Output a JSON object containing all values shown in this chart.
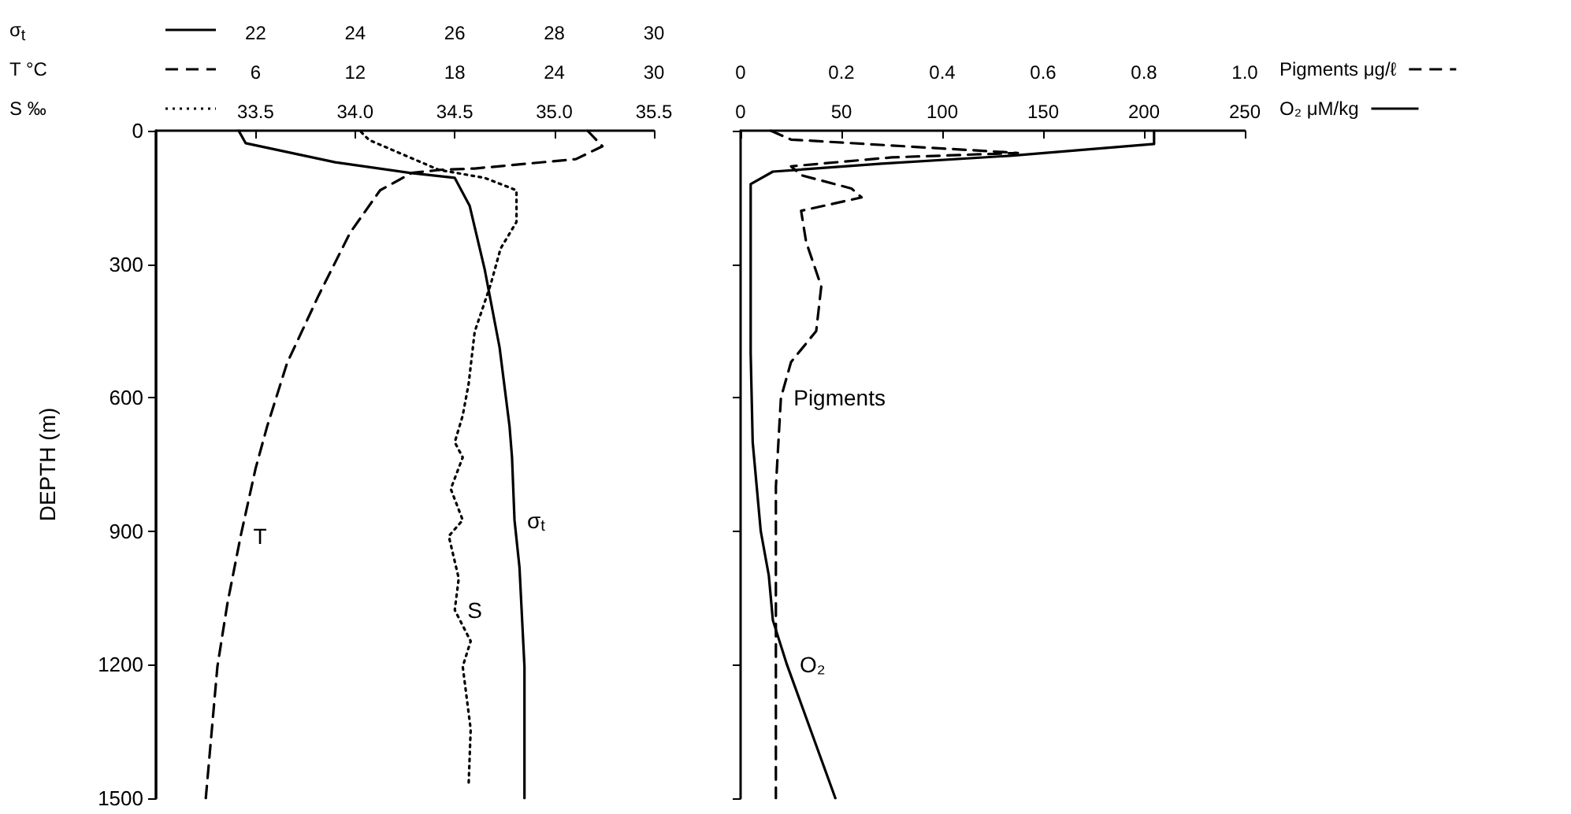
{
  "chart_data": [
    {
      "type": "line",
      "ylabel": "DEPTH (m)",
      "xlabel": "σ$_{t}$",
      "x2label": "T °C",
      "ylim": [
        1500,
        0
      ],
      "yticks": [
        0,
        300,
        600,
        900,
        1200,
        1500
      ],
      "xlim": [
        20,
        30
      ],
      "xticks": [
        22,
        24,
        26,
        28,
        30
      ],
      "x2lim": [
        0,
        30
      ],
      "x2ticks": [
        6,
        12,
        18,
        24,
        30
      ],
      "grid": false,
      "series": [
        {
          "name": "σ$_{t}$",
          "color": "#000000",
          "line_style": "solid",
          "x": [
            21.66,
            21.8,
            23.6,
            25.1,
            26.0,
            26.3,
            26.6,
            26.9,
            27.1,
            27.15,
            27.2,
            27.3,
            27.4,
            27.4
          ],
          "values": [
            0,
            28,
            71,
            95,
            106,
            169,
            311,
            487,
            664,
            734,
            875,
            981,
            1204,
            1500
          ]
        },
        {
          "name": "T",
          "color": "#000000",
          "line_style": "dashed",
          "axis": "x2",
          "x": [
            26.0,
            26.9,
            25.3,
            19.2,
            17.1,
            15.4,
            13.5,
            11.7,
            9.8,
            7.9,
            6.7,
            6.0,
            5.1,
            4.3,
            3.7,
            3.0
          ],
          "values": [
            0,
            35,
            64,
            85,
            88,
            95,
            134,
            229,
            370,
            522,
            664,
            759,
            911,
            1063,
            1204,
            1500
          ]
        }
      ]
    },
    {
      "type": "line",
      "xlabel": "S ‰",
      "tick_labels": "x",
      "ylim": [
        1500,
        0
      ],
      "yticks": [
        {
          "value": 0,
          "label": null
        },
        {
          "value": 300,
          "label": null
        },
        {
          "value": 600,
          "label": null
        },
        {
          "value": 900,
          "label": null
        },
        {
          "value": 1200,
          "label": null
        },
        {
          "value": 1500,
          "label": null
        }
      ],
      "xlim": [
        33,
        35.5
      ],
      "xticks": [
        33.5,
        {
          "value": 34,
          "label": "34.0"
        },
        34.5,
        {
          "value": 35,
          "label": "35.0"
        },
        35.5
      ],
      "grid": false,
      "series": [
        {
          "name": "S",
          "color": "#000000",
          "line_style": "dotted",
          "x": [
            34.03,
            34.07,
            34.42,
            34.65,
            34.81,
            34.81,
            34.73,
            34.68,
            34.6,
            34.57,
            34.54,
            34.5,
            34.54,
            34.48,
            34.54,
            34.47,
            34.52,
            34.5,
            34.58,
            34.54,
            34.58,
            34.57
          ],
          "values": [
            3,
            21,
            88,
            106,
            134,
            205,
            265,
            346,
            452,
            568,
            640,
            700,
            734,
            805,
            875,
            911,
            1006,
            1077,
            1147,
            1204,
            1345,
            1465
          ]
        }
      ]
    },
    {
      "type": "line",
      "xlabel": "Pigments μg/ℓ",
      "x2label": "O₂ μM/kg",
      "tick_labels": "x",
      "ylim": [
        1500,
        0
      ],
      "yticks": [
        {
          "value": 0,
          "label": null
        },
        {
          "value": 300,
          "label": null
        },
        {
          "value": 600,
          "label": null
        },
        {
          "value": 900,
          "label": null
        },
        {
          "value": 1200,
          "label": null
        },
        {
          "value": 1500,
          "label": null
        }
      ],
      "xlim": [
        0,
        1
      ],
      "xticks": [
        0,
        0.2,
        0.4,
        0.6,
        0.8,
        {
          "value": 1,
          "label": "1.0"
        }
      ],
      "x2lim": [
        0,
        250
      ],
      "x2ticks": [
        0,
        50,
        100,
        150,
        200,
        250
      ],
      "grid": false,
      "series": [
        {
          "name": "Pigments",
          "color": "#000000",
          "line_style": "dashed",
          "x": [
            0.06,
            0.1,
            0.4,
            0.55,
            0.3,
            0.1,
            0.12,
            0.22,
            0.24,
            0.12,
            0.13,
            0.16,
            0.15,
            0.1,
            0.08,
            0.07,
            0.07,
            0.07
          ],
          "values": [
            0,
            20,
            40,
            50,
            60,
            80,
            100,
            130,
            150,
            180,
            250,
            350,
            450,
            520,
            600,
            800,
            1100,
            1500
          ]
        },
        {
          "name": "O₂",
          "color": "#000000",
          "line_style": "solid",
          "axis": "x2",
          "x": [
            205,
            205,
            135,
            70,
            16,
            5,
            5,
            5,
            6,
            10,
            14,
            16,
            23,
            31,
            39,
            47
          ],
          "values": [
            0,
            30,
            56,
            74,
            92,
            120,
            300,
            500,
            700,
            900,
            1000,
            1100,
            1200,
            1300,
            1400,
            1500
          ]
        }
      ]
    }
  ]
}
